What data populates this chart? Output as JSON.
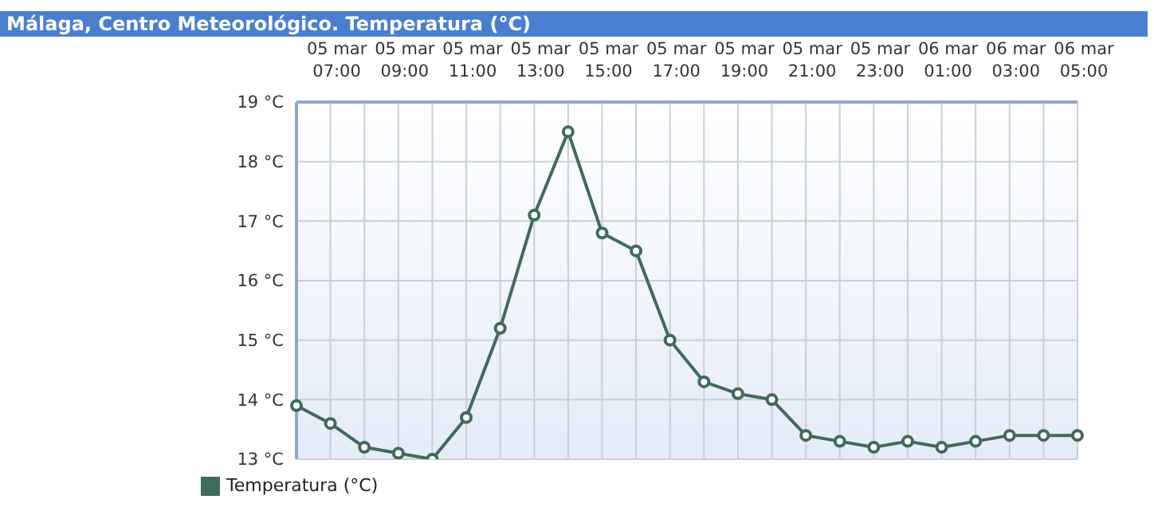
{
  "chart_data": {
    "type": "line",
    "title": "Málaga, Centro Meteorológico. Temperatura (°C)",
    "categories": [
      null,
      "05 mar 07:00",
      null,
      "05 mar 09:00",
      null,
      "05 mar 11:00",
      null,
      "05 mar 13:00",
      null,
      "05 mar 15:00",
      null,
      "05 mar 17:00",
      null,
      "05 mar 19:00",
      null,
      "05 mar 21:00",
      null,
      "05 mar 23:00",
      null,
      "06 mar 01:00",
      null,
      "06 mar 03:00",
      null,
      "06 mar 05:00"
    ],
    "series": [
      {
        "name": "Temperatura (°C)",
        "color": "#3f6b5c",
        "values": [
          13.9,
          13.6,
          13.2,
          13.1,
          13.0,
          13.7,
          15.2,
          17.1,
          18.5,
          16.8,
          16.5,
          15.0,
          14.3,
          14.1,
          14.0,
          13.4,
          13.3,
          13.2,
          13.3,
          13.2,
          13.3,
          13.4,
          13.4,
          13.4
        ]
      }
    ],
    "ylim": [
      13,
      19
    ],
    "yticks": [
      {
        "value": 13,
        "label": "13 °C"
      },
      {
        "value": 14,
        "label": "14 °C"
      },
      {
        "value": 15,
        "label": "15 °C"
      },
      {
        "value": 16,
        "label": "16 °C"
      },
      {
        "value": 17,
        "label": "17 °C"
      },
      {
        "value": 18,
        "label": "18 °C"
      },
      {
        "value": 19,
        "label": "19 °C"
      }
    ],
    "grid": true,
    "legend": "bottom left",
    "marker": "circle",
    "line_style": "solid"
  }
}
